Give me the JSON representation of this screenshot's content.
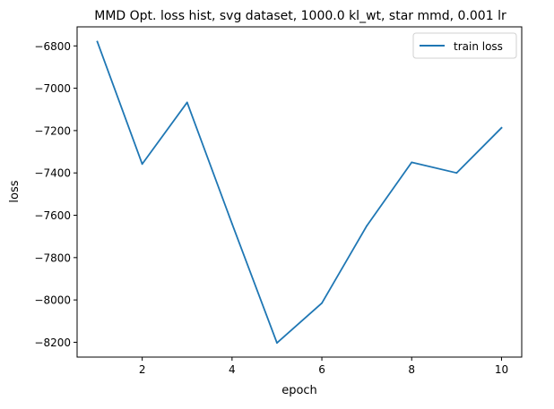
{
  "chart_data": {
    "type": "line",
    "title": "MMD Opt. loss hist, svg dataset, 1000.0 kl_wt, star mmd, 0.001 lr",
    "xlabel": "epoch",
    "ylabel": "loss",
    "xlim": [
      0.55,
      10.45
    ],
    "ylim": [
      -8270,
      -6710
    ],
    "xticks": [
      2,
      4,
      6,
      8,
      10
    ],
    "yticks": [
      -8200,
      -8000,
      -7800,
      -7600,
      -7400,
      -7200,
      -7000,
      -6800
    ],
    "xtick_labels": [
      "2",
      "4",
      "6",
      "8",
      "10"
    ],
    "ytick_labels": [
      "−8200",
      "−8000",
      "−7800",
      "−7600",
      "−7400",
      "−7200",
      "−7000",
      "−6800"
    ],
    "grid": false,
    "legend_position": "upper right",
    "series": [
      {
        "name": "train loss",
        "color": "#1f77b4",
        "x": [
          1,
          2,
          3,
          4,
          5,
          6,
          7,
          8,
          9,
          10
        ],
        "y": [
          -6780,
          -7358,
          -7067,
          -7640,
          -8203,
          -8015,
          -7650,
          -7350,
          -7400,
          -7187
        ]
      }
    ]
  }
}
